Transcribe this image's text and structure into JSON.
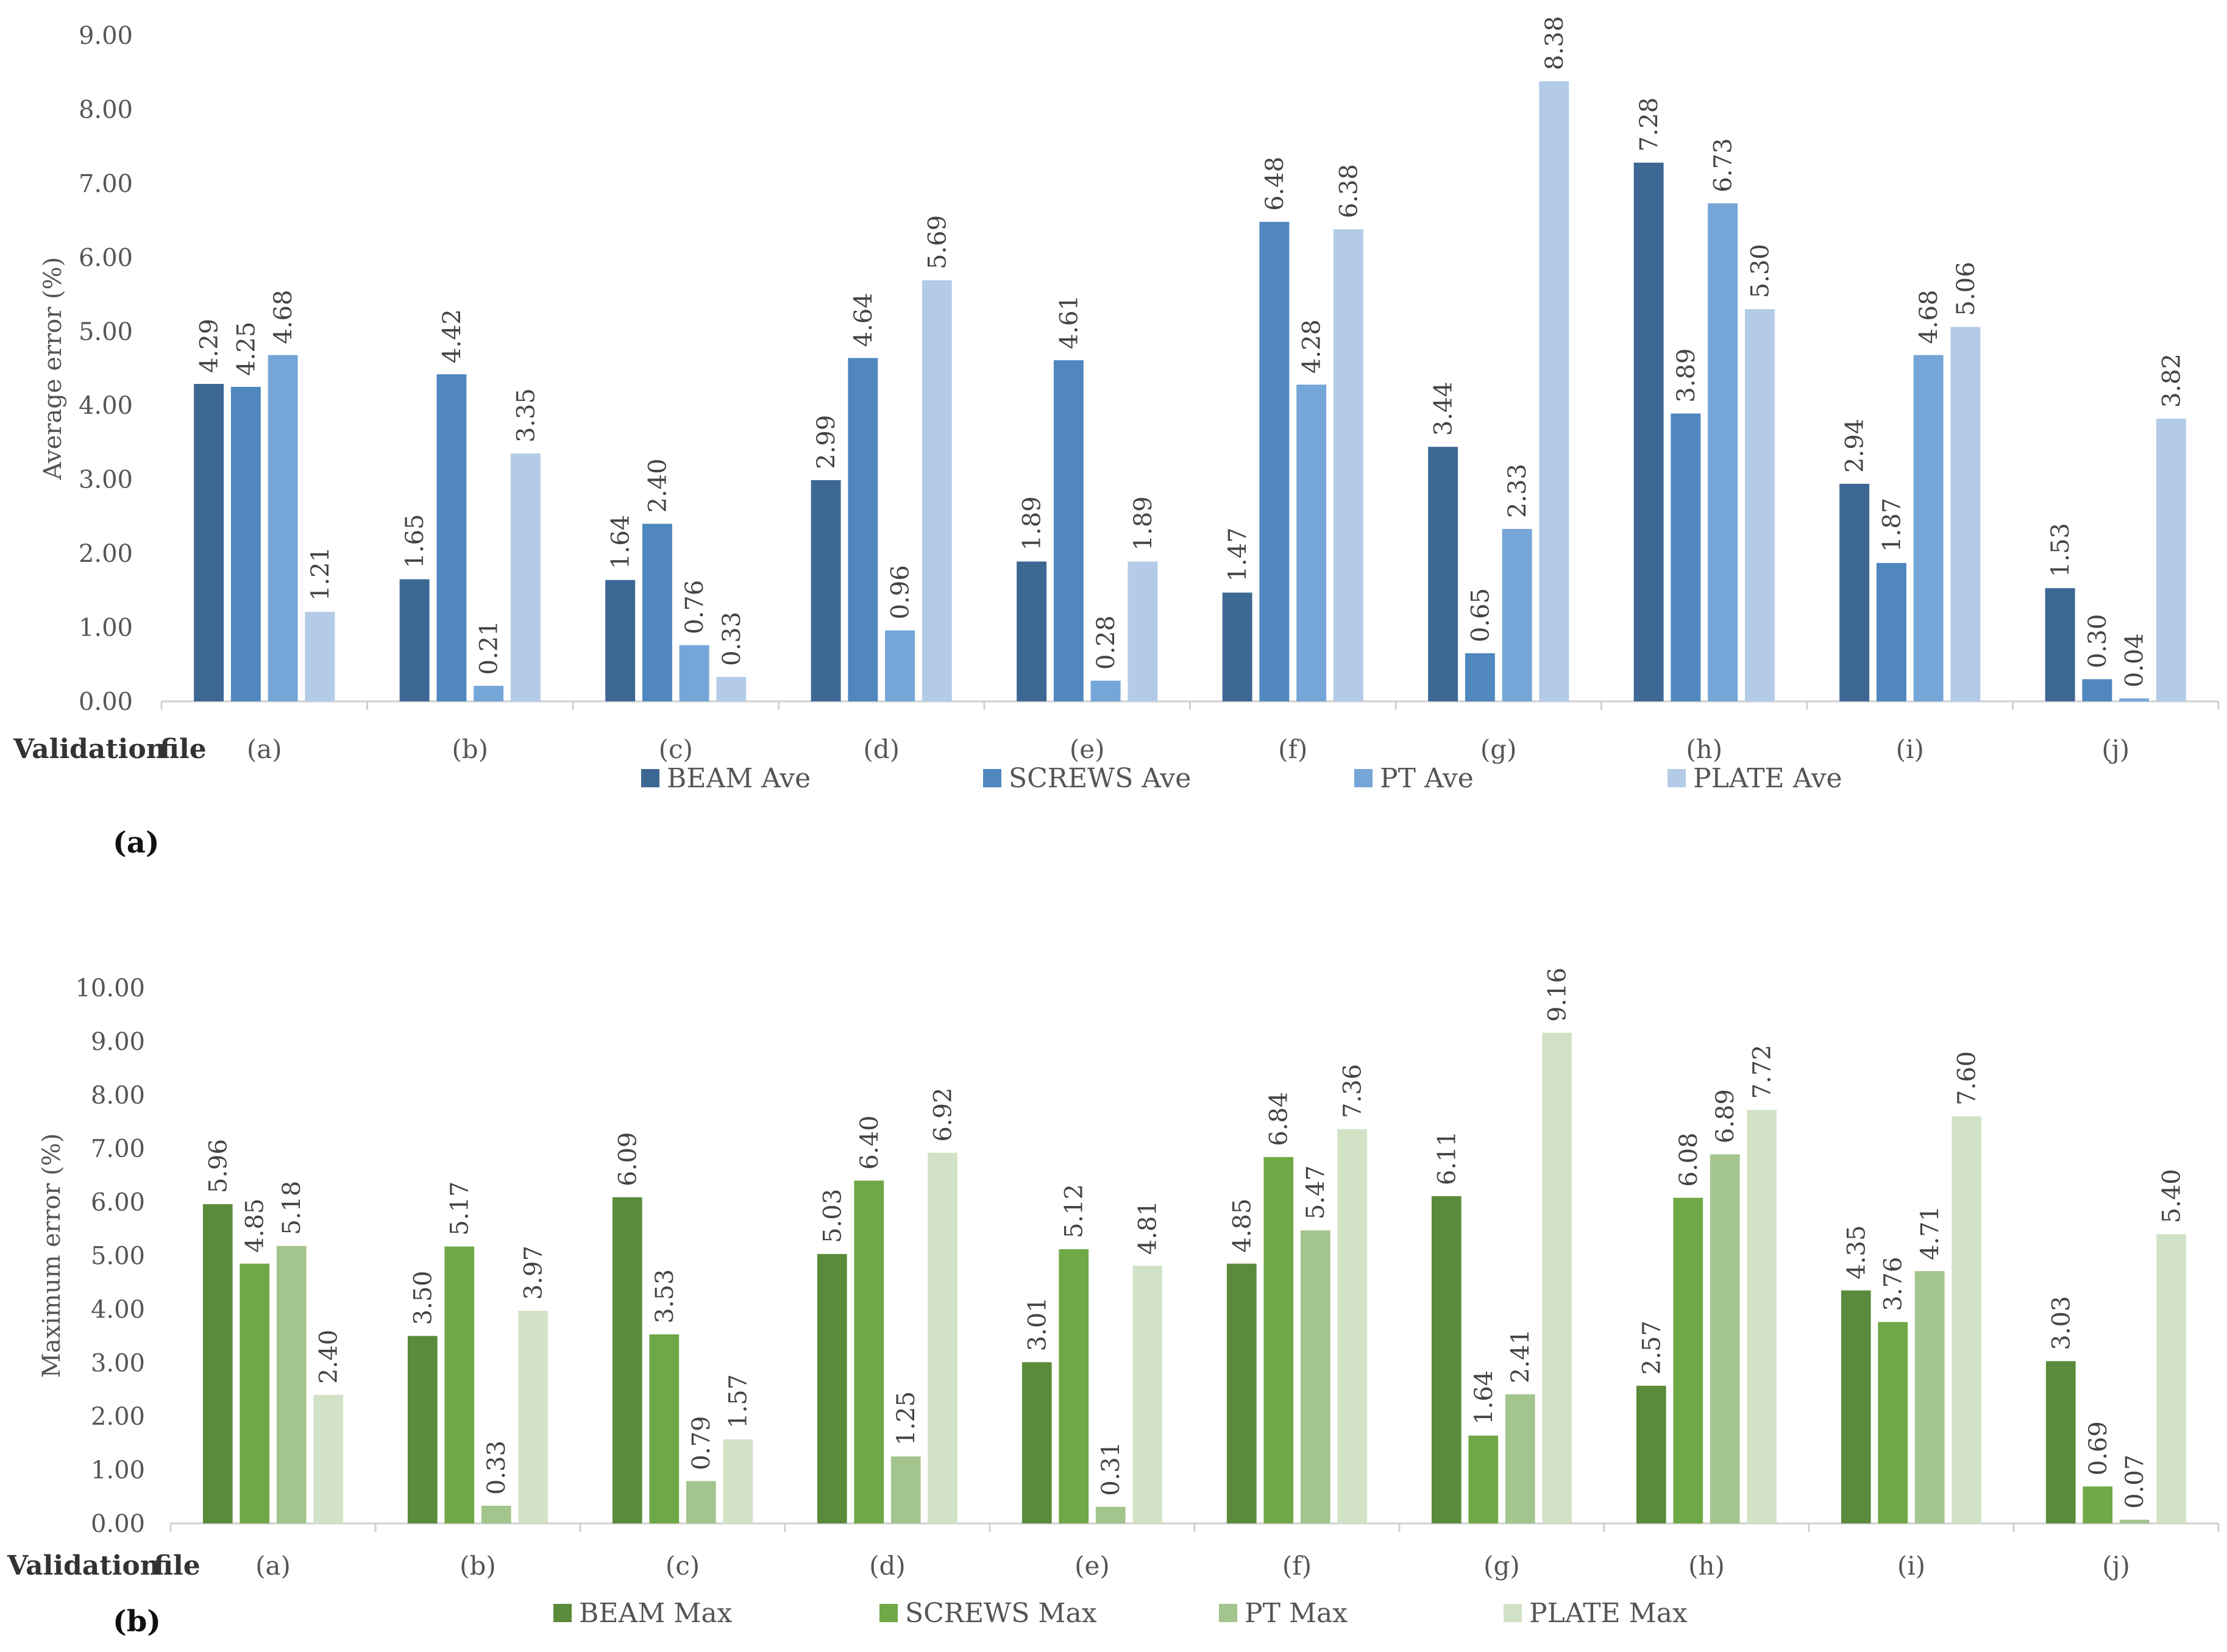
{
  "charts": [
    {
      "panel_label": "(a)",
      "x_title_left": "Validation",
      "x_title_right": "file"
    },
    {
      "panel_label": "(b)",
      "x_title_left": "Validation",
      "x_title_right": "file"
    }
  ],
  "chart_data": [
    {
      "type": "bar",
      "title": "",
      "xlabel": "Validation file",
      "ylabel": "Average error (%)",
      "ylim": [
        0,
        9
      ],
      "y_ticks": [
        "0.00",
        "1.00",
        "2.00",
        "3.00",
        "4.00",
        "5.00",
        "6.00",
        "7.00",
        "8.00",
        "9.00"
      ],
      "grid": false,
      "legend_position": "bottom",
      "categories": [
        "(a)",
        "(b)",
        "(c)",
        "(d)",
        "(e)",
        "(f)",
        "(g)",
        "(h)",
        "(i)",
        "(j)"
      ],
      "series": [
        {
          "name": "BEAM Ave",
          "color": "#3d6894",
          "values": [
            4.29,
            1.65,
            1.64,
            2.99,
            1.89,
            1.47,
            3.44,
            7.28,
            2.94,
            1.53
          ],
          "labels": [
            "4.29",
            "1.65",
            "1.64",
            "2.99",
            "1.89",
            "1.47",
            "3.44",
            "7.28",
            "2.94",
            "1.53"
          ]
        },
        {
          "name": "SCREWS Ave",
          "color": "#4f87be",
          "values": [
            4.25,
            4.42,
            2.4,
            4.64,
            4.61,
            6.48,
            0.65,
            3.89,
            1.87,
            0.3
          ],
          "labels": [
            "4.25",
            "4.42",
            "2.40",
            "4.64",
            "4.61",
            "6.48",
            "0.65",
            "3.89",
            "1.87",
            "0.30"
          ]
        },
        {
          "name": "PT Ave",
          "color": "#75a6d7",
          "values": [
            4.68,
            0.21,
            0.76,
            0.96,
            0.28,
            4.28,
            2.33,
            6.73,
            4.68,
            0.04
          ],
          "labels": [
            "4.68",
            "0.21",
            "0.76",
            "0.96",
            "0.28",
            "4.28",
            "2.33",
            "6.73",
            "4.68",
            "0.04"
          ]
        },
        {
          "name": "PLATE Ave",
          "color": "#b4cbe7",
          "values": [
            1.21,
            3.35,
            0.33,
            5.69,
            1.89,
            6.38,
            8.38,
            5.3,
            5.06,
            3.82
          ],
          "labels": [
            "1.21",
            "3.35",
            "0.33",
            "5.69",
            "1.89",
            "6.38",
            "8.38",
            "5.30",
            "5.06",
            "3.82"
          ]
        }
      ]
    },
    {
      "type": "bar",
      "title": "",
      "xlabel": "Validation file",
      "ylabel": "Maximum error (%)",
      "ylim": [
        0,
        10
      ],
      "y_ticks": [
        "0.00",
        "1.00",
        "2.00",
        "3.00",
        "4.00",
        "5.00",
        "6.00",
        "7.00",
        "8.00",
        "9.00",
        "10.00"
      ],
      "grid": false,
      "legend_position": "bottom",
      "categories": [
        "(a)",
        "(b)",
        "(c)",
        "(d)",
        "(e)",
        "(f)",
        "(g)",
        "(h)",
        "(i)",
        "(j)"
      ],
      "series": [
        {
          "name": "BEAM Max",
          "color": "#5a8b3b",
          "values": [
            5.96,
            3.5,
            6.09,
            5.03,
            3.01,
            4.85,
            6.11,
            2.57,
            4.35,
            3.03
          ],
          "labels": [
            "5.96",
            "3.50",
            "6.09",
            "5.03",
            "3.01",
            "4.85",
            "6.11",
            "2.57",
            "4.35",
            "3.03"
          ]
        },
        {
          "name": "SCREWS Max",
          "color": "#6fa846",
          "values": [
            4.85,
            5.17,
            3.53,
            6.4,
            5.12,
            6.84,
            1.64,
            6.08,
            3.76,
            0.69
          ],
          "labels": [
            "4.85",
            "5.17",
            "3.53",
            "6.40",
            "5.12",
            "6.84",
            "1.64",
            "6.08",
            "3.76",
            "0.69"
          ]
        },
        {
          "name": "PT Max",
          "color": "#a3c48c",
          "values": [
            5.18,
            0.33,
            0.79,
            1.25,
            0.31,
            5.47,
            2.41,
            6.89,
            4.71,
            0.07
          ],
          "labels": [
            "5.18",
            "0.33",
            "0.79",
            "1.25",
            "0.31",
            "5.47",
            "2.41",
            "6.89",
            "4.71",
            "0.07"
          ]
        },
        {
          "name": "PLATE Max",
          "color": "#d2e2c6",
          "values": [
            2.4,
            3.97,
            1.57,
            6.92,
            4.81,
            7.36,
            9.16,
            7.72,
            7.6,
            5.4
          ],
          "labels": [
            "2.40",
            "3.97",
            "1.57",
            "6.92",
            "4.81",
            "7.36",
            "9.16",
            "7.72",
            "7.60",
            "5.40"
          ]
        }
      ]
    }
  ]
}
